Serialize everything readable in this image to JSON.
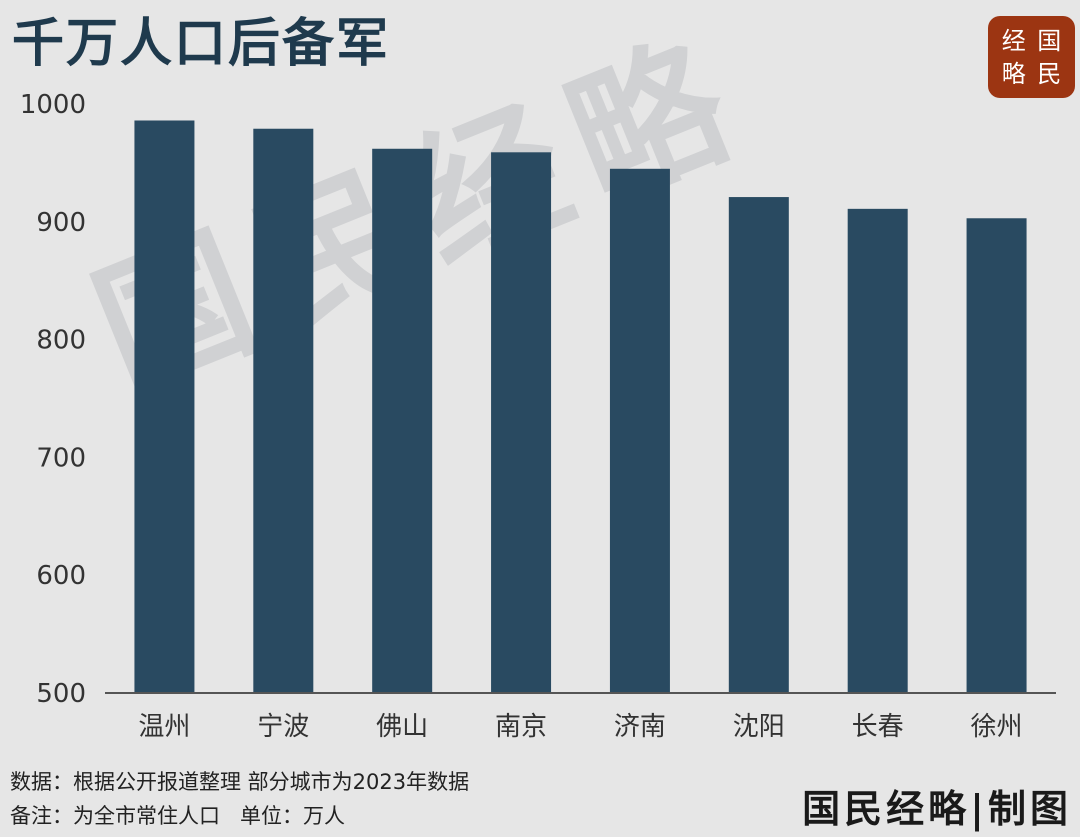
{
  "title": "千万人口后备军",
  "logo": {
    "chars": [
      "经",
      "国",
      "略",
      "民"
    ],
    "text": "国民经略"
  },
  "watermark": "国民经略",
  "footer": {
    "source": "数据：根据公开报道整理 部分城市为2023年数据",
    "note": "备注：为全市常住人口   单位：万人"
  },
  "credit": "国民经略|制图",
  "chart_data": {
    "type": "bar",
    "categories": [
      "温州",
      "宁波",
      "佛山",
      "南京",
      "济南",
      "沈阳",
      "长春",
      "徐州"
    ],
    "values": [
      986,
      979,
      962,
      959,
      945,
      921,
      911,
      903
    ],
    "title": "千万人口后备军",
    "xlabel": "",
    "ylabel": "",
    "ylim": [
      500,
      1000
    ],
    "yticks": [
      500,
      600,
      700,
      800,
      900,
      1000
    ],
    "grid": false,
    "bar_color": "#294a61"
  }
}
